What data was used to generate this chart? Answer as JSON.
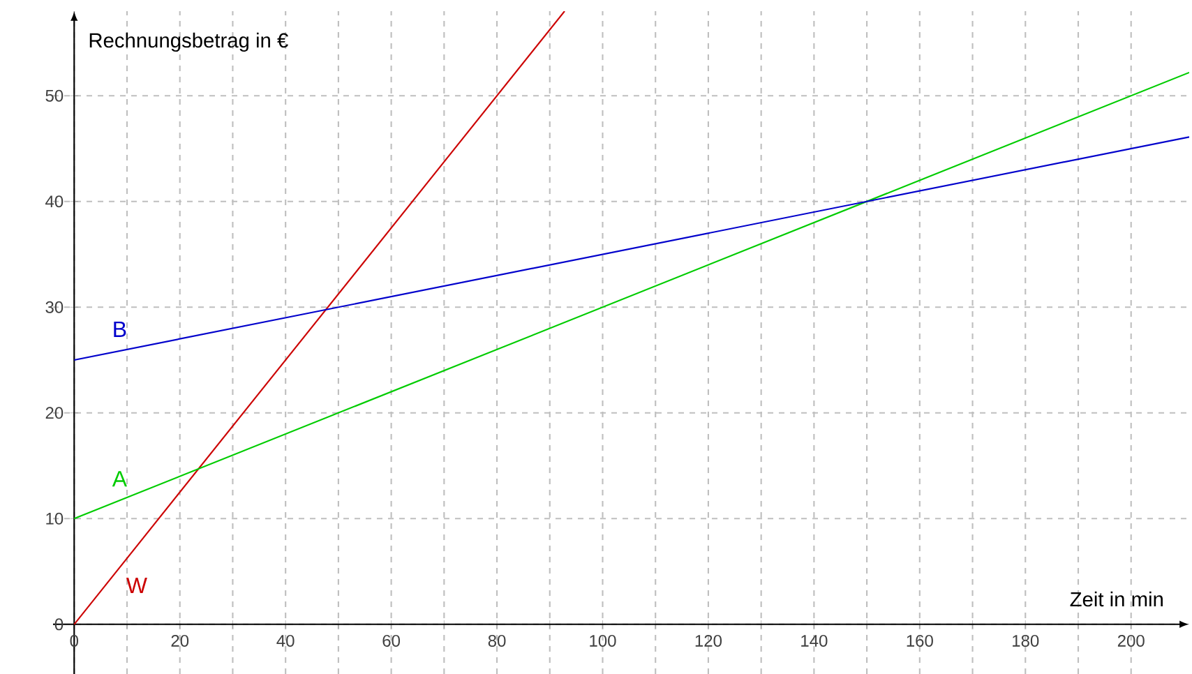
{
  "chart_data": {
    "type": "line",
    "xlabel": "Zeit in min",
    "ylabel": "Rechnungsbetrag in €",
    "xlim": [
      -4,
      211
    ],
    "ylim": [
      -4.7,
      58
    ],
    "xticks": [
      0,
      {
        "value": 10,
        "label": null
      },
      20,
      {
        "value": 30,
        "label": null
      },
      40,
      {
        "value": 50,
        "label": null
      },
      60,
      {
        "value": 70,
        "label": null
      },
      80,
      {
        "value": 90,
        "label": null
      },
      100,
      {
        "value": 110,
        "label": null
      },
      120,
      {
        "value": 130,
        "label": null
      },
      140,
      {
        "value": 150,
        "label": null
      },
      160,
      {
        "value": 170,
        "label": null
      },
      180,
      {
        "value": 190,
        "label": null
      },
      200
    ],
    "yticks": [
      0,
      10,
      20,
      30,
      40,
      50
    ],
    "grid": true,
    "legend": false,
    "marker": "none",
    "line_style": "solid",
    "series": [
      {
        "name": "W",
        "color": "#cc0000",
        "x": [
          0,
          92.8
        ],
        "values": [
          0,
          58
        ]
      },
      {
        "name": "A",
        "color": "#00cc00",
        "x": [
          0,
          211
        ],
        "values": [
          10,
          52.2
        ]
      },
      {
        "name": "B",
        "color": "#0000cc",
        "x": [
          0,
          211
        ],
        "values": [
          25,
          46.1
        ]
      }
    ]
  }
}
